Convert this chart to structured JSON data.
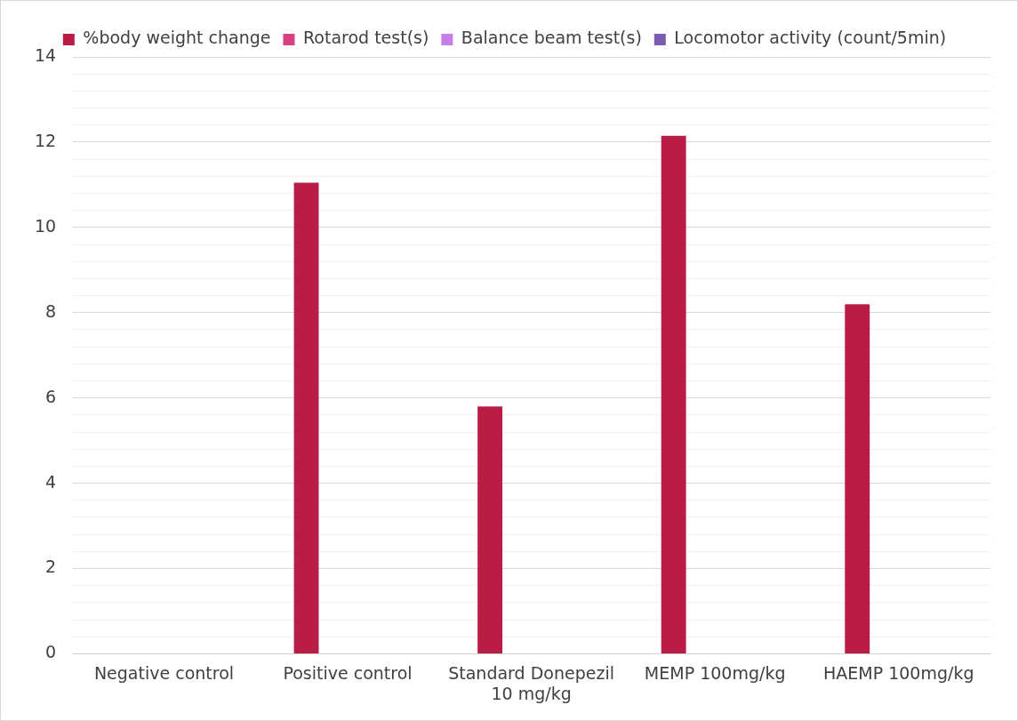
{
  "chart_data": {
    "type": "bar",
    "categories": [
      "Negative control",
      "Positive control",
      "Standard Donepezil 10 mg/kg",
      "MEMP 100mg/kg",
      "HAEMP 100mg/kg"
    ],
    "series": [
      {
        "name": "%body weight change",
        "color": "#b91c45",
        "values": [
          0,
          11.05,
          5.8,
          12.15,
          8.2
        ]
      },
      {
        "name": "Rotarod test(s)",
        "color": "#d6417f",
        "values": [
          null,
          null,
          null,
          null,
          null
        ]
      },
      {
        "name": "Balance beam test(s)",
        "color": "#c77ee8",
        "values": [
          null,
          null,
          null,
          null,
          null
        ]
      },
      {
        "name": "Locomotor activity (count/5min)",
        "color": "#7a5cb0",
        "values": [
          null,
          null,
          null,
          null,
          null
        ]
      }
    ],
    "ylim": [
      0,
      14
    ],
    "yticks": [
      0,
      {
        "value": 0.4,
        "label": null
      },
      {
        "value": 0.8,
        "label": null
      },
      {
        "value": 1.2,
        "label": null
      },
      {
        "value": 1.6,
        "label": null
      },
      2,
      {
        "value": 2.4,
        "label": null
      },
      {
        "value": 2.8,
        "label": null
      },
      {
        "value": 3.2,
        "label": null
      },
      {
        "value": 3.6,
        "label": null
      },
      4,
      {
        "value": 4.4,
        "label": null
      },
      {
        "value": 4.8,
        "label": null
      },
      {
        "value": 5.2,
        "label": null
      },
      {
        "value": 5.6,
        "label": null
      },
      6,
      {
        "value": 6.4,
        "label": null
      },
      {
        "value": 6.8,
        "label": null
      },
      {
        "value": 7.2,
        "label": null
      },
      {
        "value": 7.6,
        "label": null
      },
      8,
      {
        "value": 8.4,
        "label": null
      },
      {
        "value": 8.8,
        "label": null
      },
      {
        "value": 9.2,
        "label": null
      },
      {
        "value": 9.6,
        "label": null
      },
      10,
      {
        "value": 10.4,
        "label": null
      },
      {
        "value": 10.8,
        "label": null
      },
      {
        "value": 11.2,
        "label": null
      },
      {
        "value": 11.6,
        "label": null
      },
      12,
      {
        "value": 12.4,
        "label": null
      },
      {
        "value": 12.8,
        "label": null
      },
      {
        "value": 13.2,
        "label": null
      },
      {
        "value": 13.6,
        "label": null
      },
      14
    ],
    "grid": "y",
    "legend": "top"
  }
}
